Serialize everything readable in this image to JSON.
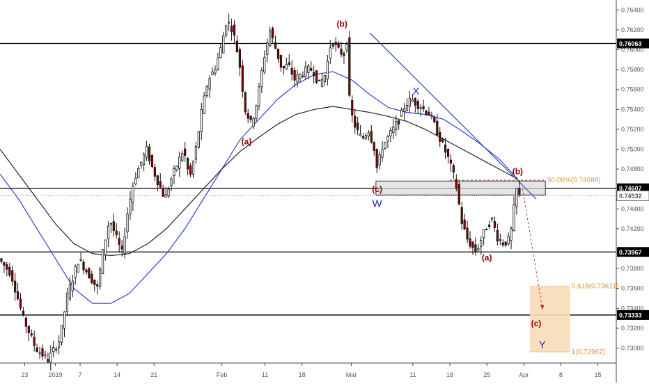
{
  "chart_data": {
    "type": "candlestick",
    "y_axis": {
      "range": [
        0.7285,
        0.765
      ],
      "ticks": [
        "0.76400",
        "0.76200",
        "0.76000",
        "0.75800",
        "0.75600",
        "0.75400",
        "0.75200",
        "0.75000",
        "0.74800",
        "0.74400",
        "0.74200",
        "0.73800",
        "0.73600",
        "0.73400",
        "0.73200",
        "0.73000"
      ]
    },
    "x_axis": {
      "ticks": [
        {
          "label": "23",
          "t": 0.04
        },
        {
          "label": "2019",
          "t": 0.09
        },
        {
          "label": "7",
          "t": 0.13
        },
        {
          "label": "14",
          "t": 0.19
        },
        {
          "label": "21",
          "t": 0.25
        },
        {
          "label": "Feb",
          "t": 0.36
        },
        {
          "label": "11",
          "t": 0.43
        },
        {
          "label": "18",
          "t": 0.49
        },
        {
          "label": "Mar",
          "t": 0.57
        },
        {
          "label": "11",
          "t": 0.67
        },
        {
          "label": "18",
          "t": 0.73
        },
        {
          "label": "25",
          "t": 0.79
        },
        {
          "label": "Apr",
          "t": 0.85
        },
        {
          "label": "8",
          "t": 0.91
        },
        {
          "label": "15",
          "t": 0.97
        }
      ]
    },
    "horizontal_levels": [
      {
        "value": 0.76063,
        "label": "0.76063"
      },
      {
        "value": 0.74607,
        "label": "0.74607"
      },
      {
        "value": 0.73967,
        "label": "0.73967"
      },
      {
        "value": 0.73333,
        "label": "0.73333"
      }
    ],
    "current_price": {
      "value": 0.74532,
      "label": "0.74532"
    },
    "fibonacci": {
      "retracement": {
        "ratio_label": "50.00%",
        "value_label": "(0.74688)",
        "value": 0.74688
      },
      "extension_0618": {
        "ratio_label": "0.618",
        "value_label": "(0.73621)",
        "value": 0.73621
      },
      "extension_1": {
        "ratio_label": "1",
        "value_label": "(0.72962)",
        "value": 0.72962
      }
    },
    "wave_labels": {
      "red": [
        "(b)",
        "(a)",
        "(c)",
        "(b)",
        "(a)",
        "(c)"
      ],
      "blue": [
        "W",
        "X",
        "Y"
      ]
    },
    "price_path": [
      [
        0.0,
        0.739
      ],
      [
        0.02,
        0.7375
      ],
      [
        0.04,
        0.733
      ],
      [
        0.06,
        0.73
      ],
      [
        0.08,
        0.7288
      ],
      [
        0.1,
        0.731
      ],
      [
        0.11,
        0.735
      ],
      [
        0.13,
        0.739
      ],
      [
        0.15,
        0.737
      ],
      [
        0.16,
        0.736
      ],
      [
        0.17,
        0.74
      ],
      [
        0.18,
        0.743
      ],
      [
        0.2,
        0.7395
      ],
      [
        0.21,
        0.744
      ],
      [
        0.22,
        0.747
      ],
      [
        0.24,
        0.75
      ],
      [
        0.25,
        0.748
      ],
      [
        0.27,
        0.745
      ],
      [
        0.28,
        0.747
      ],
      [
        0.3,
        0.75
      ],
      [
        0.31,
        0.747
      ],
      [
        0.32,
        0.75
      ],
      [
        0.33,
        0.754
      ],
      [
        0.34,
        0.757
      ],
      [
        0.35,
        0.758
      ],
      [
        0.36,
        0.76
      ],
      [
        0.37,
        0.763
      ],
      [
        0.38,
        0.762
      ],
      [
        0.39,
        0.759
      ],
      [
        0.4,
        0.754
      ],
      [
        0.41,
        0.7525
      ],
      [
        0.42,
        0.755
      ],
      [
        0.43,
        0.759
      ],
      [
        0.44,
        0.762
      ],
      [
        0.45,
        0.76
      ],
      [
        0.46,
        0.758
      ],
      [
        0.47,
        0.7585
      ],
      [
        0.48,
        0.757
      ],
      [
        0.5,
        0.758
      ],
      [
        0.51,
        0.758
      ],
      [
        0.52,
        0.7565
      ],
      [
        0.53,
        0.7575
      ],
      [
        0.54,
        0.761
      ],
      [
        0.55,
        0.76
      ],
      [
        0.56,
        0.7595
      ],
      [
        0.565,
        0.761
      ],
      [
        0.57,
        0.754
      ],
      [
        0.58,
        0.752
      ],
      [
        0.59,
        0.751
      ],
      [
        0.6,
        0.752
      ],
      [
        0.61,
        0.75
      ],
      [
        0.615,
        0.7475
      ],
      [
        0.62,
        0.75
      ],
      [
        0.63,
        0.751
      ],
      [
        0.64,
        0.752
      ],
      [
        0.65,
        0.753
      ],
      [
        0.66,
        0.7545
      ],
      [
        0.67,
        0.755
      ],
      [
        0.68,
        0.7545
      ],
      [
        0.69,
        0.754
      ],
      [
        0.7,
        0.7535
      ],
      [
        0.71,
        0.752
      ],
      [
        0.72,
        0.7505
      ],
      [
        0.73,
        0.749
      ],
      [
        0.74,
        0.747
      ],
      [
        0.745,
        0.7455
      ],
      [
        0.75,
        0.743
      ],
      [
        0.76,
        0.741
      ],
      [
        0.77,
        0.74
      ],
      [
        0.775,
        0.7397
      ],
      [
        0.78,
        0.7405
      ],
      [
        0.79,
        0.742
      ],
      [
        0.8,
        0.743
      ],
      [
        0.81,
        0.741
      ],
      [
        0.82,
        0.7405
      ],
      [
        0.83,
        0.741
      ],
      [
        0.84,
        0.746
      ],
      [
        0.845,
        0.7453
      ]
    ],
    "ma_blue": [
      [
        0.0,
        0.7475
      ],
      [
        0.03,
        0.745
      ],
      [
        0.06,
        0.742
      ],
      [
        0.09,
        0.739
      ],
      [
        0.12,
        0.736
      ],
      [
        0.15,
        0.7345
      ],
      [
        0.18,
        0.7345
      ],
      [
        0.21,
        0.7355
      ],
      [
        0.24,
        0.7375
      ],
      [
        0.27,
        0.7395
      ],
      [
        0.3,
        0.742
      ],
      [
        0.33,
        0.745
      ],
      [
        0.36,
        0.748
      ],
      [
        0.39,
        0.751
      ],
      [
        0.42,
        0.753
      ],
      [
        0.45,
        0.755
      ],
      [
        0.48,
        0.7565
      ],
      [
        0.51,
        0.7575
      ],
      [
        0.54,
        0.7578
      ],
      [
        0.57,
        0.757
      ],
      [
        0.6,
        0.7555
      ],
      [
        0.63,
        0.7542
      ],
      [
        0.66,
        0.7537
      ],
      [
        0.69,
        0.7535
      ],
      [
        0.72,
        0.753
      ],
      [
        0.75,
        0.7518
      ],
      [
        0.78,
        0.7505
      ],
      [
        0.81,
        0.749
      ],
      [
        0.84,
        0.747
      ]
    ],
    "ma_black": [
      [
        0.0,
        0.75
      ],
      [
        0.03,
        0.7475
      ],
      [
        0.06,
        0.745
      ],
      [
        0.09,
        0.7425
      ],
      [
        0.12,
        0.7405
      ],
      [
        0.15,
        0.7395
      ],
      [
        0.18,
        0.7393
      ],
      [
        0.21,
        0.7395
      ],
      [
        0.24,
        0.7405
      ],
      [
        0.27,
        0.742
      ],
      [
        0.3,
        0.744
      ],
      [
        0.33,
        0.746
      ],
      [
        0.36,
        0.748
      ],
      [
        0.39,
        0.7498
      ],
      [
        0.42,
        0.7512
      ],
      [
        0.45,
        0.7525
      ],
      [
        0.48,
        0.7535
      ],
      [
        0.51,
        0.754
      ],
      [
        0.54,
        0.7543
      ],
      [
        0.57,
        0.754
      ],
      [
        0.6,
        0.7537
      ],
      [
        0.63,
        0.7533
      ],
      [
        0.66,
        0.7528
      ],
      [
        0.69,
        0.752
      ],
      [
        0.72,
        0.751
      ],
      [
        0.75,
        0.75
      ],
      [
        0.78,
        0.749
      ],
      [
        0.81,
        0.748
      ],
      [
        0.84,
        0.747
      ]
    ]
  },
  "colors": {
    "up_candle": "#ffffff",
    "down_candle": "#8b0000",
    "ma_blue": "#3341d1",
    "ma_black": "#222222",
    "wave_red": "#8b0000",
    "wave_blue": "#1f2db0",
    "fib": "#e89a3c",
    "fib_fill": "#f9dcb7",
    "zone_fill": "#d8d8d8",
    "badge_bg": "#000000"
  }
}
